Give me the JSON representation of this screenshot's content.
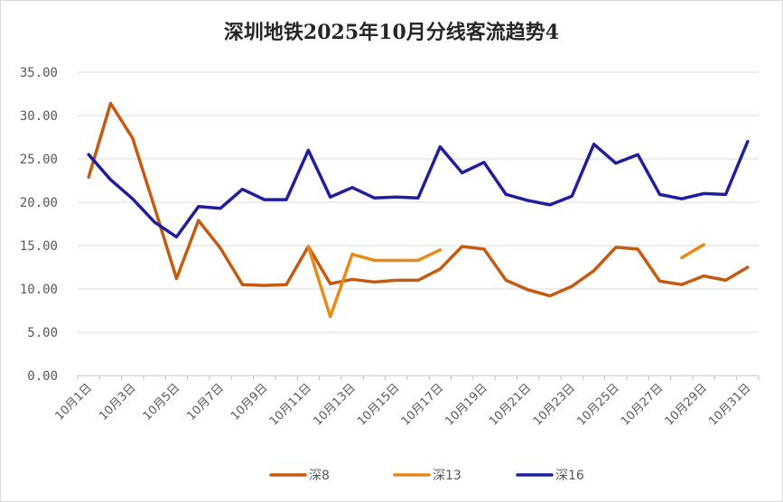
{
  "chart_data": {
    "type": "line",
    "title": "深圳地铁2025年10月分线客流趋势4",
    "xlabel": "",
    "ylabel": "",
    "ylim": [
      0,
      35
    ],
    "yticks": [
      "0.00",
      "5.00",
      "10.00",
      "15.00",
      "20.00",
      "25.00",
      "30.00",
      "35.00"
    ],
    "categories": [
      "10月1日",
      "10月2日",
      "10月3日",
      "10月4日",
      "10月5日",
      "10月6日",
      "10月7日",
      "10月8日",
      "10月9日",
      "10月10日",
      "10月11日",
      "10月12日",
      "10月13日",
      "10月14日",
      "10月15日",
      "10月16日",
      "10月17日",
      "10月18日",
      "10月19日",
      "10月20日",
      "10月21日",
      "10月22日",
      "10月23日",
      "10月24日",
      "10月25日",
      "10月26日",
      "10月27日",
      "10月28日",
      "10月29日",
      "10月30日",
      "10月31日"
    ],
    "xtick_labels": [
      "10月1日",
      "10月3日",
      "10月5日",
      "10月7日",
      "10月9日",
      "10月11日",
      "10月13日",
      "10月15日",
      "10月17日",
      "10月19日",
      "10月21日",
      "10月23日",
      "10月25日",
      "10月27日",
      "10月29日",
      "10月31日"
    ],
    "grid": true,
    "legend": "bottom",
    "series": [
      {
        "name": "深8",
        "color": "#c55a11",
        "values": [
          22.9,
          31.4,
          27.4,
          19.4,
          11.2,
          17.9,
          14.7,
          10.5,
          10.4,
          10.5,
          14.9,
          10.6,
          11.1,
          10.8,
          11.0,
          11.0,
          12.3,
          14.9,
          14.6,
          11.0,
          9.9,
          9.2,
          10.3,
          12.1,
          14.8,
          14.6,
          10.9,
          10.5,
          11.5,
          11.0,
          12.5
        ]
      },
      {
        "name": "深13",
        "color": "#e88a17",
        "values": [
          null,
          null,
          null,
          null,
          null,
          null,
          null,
          null,
          null,
          null,
          14.9,
          6.8,
          14.0,
          13.3,
          13.3,
          13.3,
          14.5,
          null,
          null,
          null,
          null,
          null,
          null,
          null,
          null,
          null,
          null,
          13.6,
          15.1,
          null,
          null
        ]
      },
      {
        "name": "深16",
        "color": "#1f1f9e",
        "values": [
          25.5,
          22.6,
          20.4,
          17.7,
          16.0,
          19.5,
          19.3,
          21.5,
          20.3,
          20.3,
          26.0,
          20.6,
          21.7,
          20.5,
          20.6,
          20.5,
          26.4,
          23.4,
          24.6,
          20.9,
          20.2,
          19.7,
          20.7,
          26.7,
          24.5,
          25.5,
          20.9,
          20.4,
          21.0,
          20.9,
          27.0
        ]
      }
    ]
  }
}
